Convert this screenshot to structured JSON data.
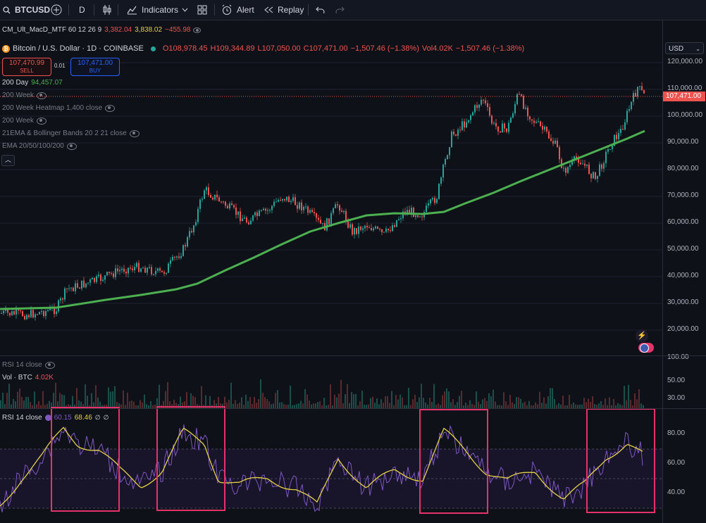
{
  "toolbar": {
    "symbol": "BTCUSD",
    "interval": "D",
    "indicators": "Indicators",
    "alert": "Alert",
    "replay": "Replay"
  },
  "macd": {
    "name": "CM_Ult_MacD_MTF 60 12 26 9",
    "v1": "3,382.04",
    "v2": "3,838.02",
    "v3": "−455.98"
  },
  "header": {
    "title": "Bitcoin / U.S. Dollar · 1D · COINBASE",
    "o": "O108,978.45",
    "h": "H109,344.89",
    "l": "L107,050.00",
    "c": "C107,471.00",
    "chg": "−1,507.46 (−1.38%)",
    "vol": "Vol4.02K",
    "vol_chg": "−1,507.46 (−1.38%)"
  },
  "trade": {
    "sell_price": "107,470.99",
    "sell_label": "SELL",
    "spread": "0.01",
    "buy_price": "107,471.00",
    "buy_label": "BUY"
  },
  "indicators": {
    "ma200d_name": "200 Day",
    "ma200d_value": "94,457.07",
    "i1": "200 Week",
    "i2": "200 Week Heatmap 1,400 close",
    "i3": "200 Week",
    "i4": "21EMA & Bollinger Bands 20 2 21 close",
    "i5": "EMA 20/50/100/200"
  },
  "currency": "USD",
  "price_axis": [
    "120,000.00",
    "110,000.00",
    "100,000.00",
    "90,000.00",
    "80,000.00",
    "70,000.00",
    "60,000.00",
    "50,000.00",
    "40,000.00",
    "30,000.00",
    "20,000.00"
  ],
  "last_price": "107,471.00",
  "rsi_top": {
    "label": "RSI 14 close",
    "axis": "100.00"
  },
  "volume": {
    "label": "Vol · BTC",
    "value": "4.02K",
    "axis": [
      "50.00",
      "30.00"
    ]
  },
  "rsi": {
    "label": "RSI 14 close",
    "v1": "60.15",
    "v2": "68.46",
    "axis": [
      "80.00",
      "60.00",
      "40.00"
    ]
  },
  "colors": {
    "up": "#26a69a",
    "down": "#ef5350",
    "ma200": "#4caf50",
    "rsi": "#7e57c2",
    "rsi_ma": "#e5d145",
    "highlight": "#e5326b"
  }
}
